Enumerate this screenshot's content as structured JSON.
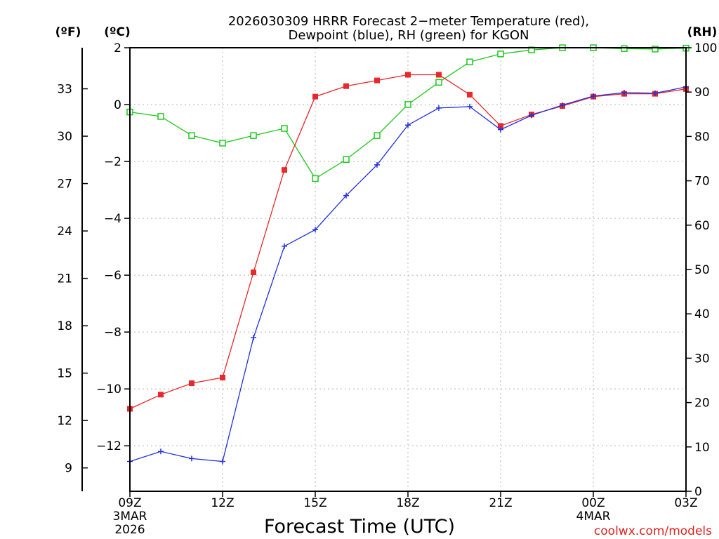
{
  "chart_data": {
    "type": "line",
    "title_line1": "2026030309 HRRR Forecast 2−meter Temperature (red),",
    "title_line2": "Dewpoint (blue), RH (green) for KGON",
    "xlabel": "Forecast Time (UTC)",
    "credit": "coolwx.com/models",
    "x_hours": [
      9,
      10,
      11,
      12,
      13,
      14,
      15,
      16,
      17,
      18,
      19,
      20,
      21,
      22,
      23,
      24,
      25,
      26,
      27
    ],
    "xlim": [
      9,
      27
    ],
    "x_ticks": [
      {
        "hour": 9,
        "label": "09Z",
        "sub1": "3MAR",
        "sub2": "2026"
      },
      {
        "hour": 12,
        "label": "12Z",
        "sub1": "",
        "sub2": ""
      },
      {
        "hour": 15,
        "label": "15Z",
        "sub1": "",
        "sub2": ""
      },
      {
        "hour": 18,
        "label": "18Z",
        "sub1": "",
        "sub2": ""
      },
      {
        "hour": 21,
        "label": "21Z",
        "sub1": "",
        "sub2": ""
      },
      {
        "hour": 24,
        "label": "00Z",
        "sub1": "4MAR",
        "sub2": ""
      },
      {
        "hour": 27,
        "label": "03Z",
        "sub1": "",
        "sub2": ""
      }
    ],
    "axis_c": {
      "label": "(ºC)",
      "ylim": [
        -13.6,
        2
      ],
      "ticks": [
        2,
        0,
        -2,
        -4,
        -6,
        -8,
        -10,
        -12
      ],
      "tick_labels": [
        "2",
        "0",
        "−2",
        "−4",
        "−6",
        "−8",
        "−10",
        "−12"
      ]
    },
    "axis_f": {
      "label": "(ºF)",
      "ticks": [
        33,
        30,
        27,
        24,
        21,
        18,
        15,
        12,
        9
      ]
    },
    "axis_rh": {
      "label": "(RH)",
      "ylim": [
        0,
        100
      ],
      "ticks": [
        100,
        90,
        80,
        70,
        60,
        50,
        40,
        30,
        20,
        10,
        0
      ]
    },
    "series": [
      {
        "name": "Temperature",
        "unit": "C",
        "color": "#e8282a",
        "marker": "filled-square",
        "values": [
          -10.7,
          -10.2,
          -9.8,
          -9.6,
          -5.9,
          -2.3,
          0.28,
          0.65,
          0.85,
          1.05,
          1.05,
          0.35,
          -0.75,
          -0.35,
          -0.05,
          0.28,
          0.38,
          0.38,
          0.55
        ]
      },
      {
        "name": "Dewpoint",
        "unit": "C",
        "color": "#2030e0",
        "marker": "plus",
        "values": [
          -12.55,
          -12.2,
          -12.45,
          -12.55,
          -8.2,
          -4.98,
          -4.4,
          -3.2,
          -2.12,
          -0.72,
          -0.12,
          -0.07,
          -0.88,
          -0.38,
          -0.02,
          0.3,
          0.42,
          0.4,
          0.62
        ]
      },
      {
        "name": "RH",
        "unit": "%",
        "color": "#1ec81e",
        "marker": "open-square",
        "values": [
          85.5,
          84.5,
          80.2,
          78.5,
          80.2,
          81.8,
          70.5,
          74.8,
          80.2,
          87.2,
          92.2,
          96.8,
          98.6,
          99.5,
          100,
          100,
          99.8,
          99.7,
          99.9
        ]
      }
    ],
    "grid": true
  }
}
